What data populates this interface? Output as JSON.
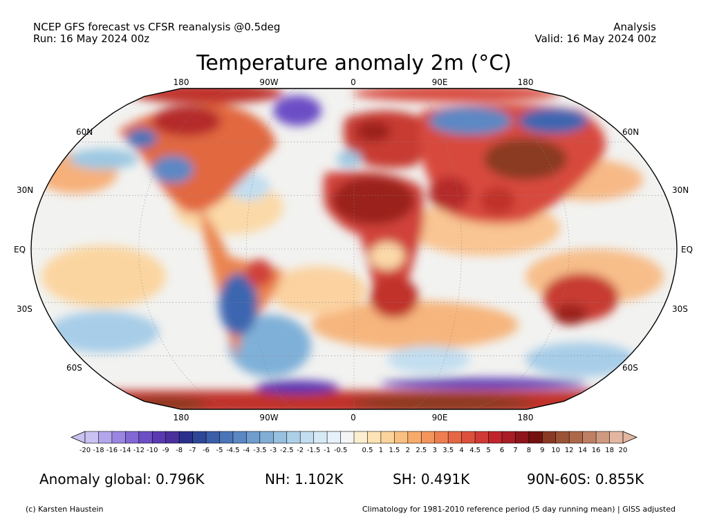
{
  "header": {
    "left_line1": "NCEP GFS forecast vs CFSR reanalysis @0.5deg",
    "left_line2": "Run: 16 May 2024 00z",
    "right_line1": "Analysis",
    "right_line2": "Valid: 16 May 2024 00z"
  },
  "title": "Temperature anomaly 2m (°C)",
  "map": {
    "projection": "Robinson",
    "lon_labels": [
      "180",
      "90W",
      "0",
      "90E",
      "180"
    ],
    "lat_labels": [
      "60N",
      "30N",
      "EQ",
      "30S",
      "60S"
    ],
    "colors": {
      "ocean_neutral": "#f2f2f0",
      "warm": "#f6b87a",
      "hot": "#c0312c",
      "extreme_hot": "#8a3b24",
      "cool": "#9cc8e2",
      "cold": "#3d66b0",
      "very_cold": "#5b3aa8"
    }
  },
  "colorbar": {
    "labels": [
      "-20",
      "-18",
      "-16",
      "-14",
      "-12",
      "-10",
      "-9",
      "-8",
      "-7",
      "-6",
      "-5",
      "-4.5",
      "-4",
      "-3.5",
      "-3",
      "-2.5",
      "-2",
      "-1.5",
      "-1",
      "-0.5",
      "0.5",
      "1",
      "1.5",
      "2",
      "2.5",
      "3",
      "3.5",
      "4",
      "4.5",
      "5",
      "6",
      "7",
      "8",
      "9",
      "10",
      "12",
      "14",
      "16",
      "18",
      "20"
    ],
    "colors": [
      "#c9c2f2",
      "#b3a6ec",
      "#9a86e0",
      "#8268d4",
      "#6c4ec6",
      "#5a39b2",
      "#49309c",
      "#2b2f8c",
      "#2d4796",
      "#3a5ea8",
      "#4b75b8",
      "#5b88c4",
      "#6e9dce",
      "#82aed6",
      "#98c0df",
      "#aed0e7",
      "#c2def0",
      "#d6eaf6",
      "#e6f2fa",
      "#f5f5f5",
      "#fbefcf",
      "#fde3b5",
      "#fcd39a",
      "#fac081",
      "#f7ab6b",
      "#f3955c",
      "#ee7e4f",
      "#e66745",
      "#dc503c",
      "#d03934",
      "#bf262c",
      "#a81d25",
      "#8e141c",
      "#741010",
      "#8a3a24",
      "#9c5236",
      "#ad684a",
      "#be7f62",
      "#d09a80",
      "#e2b6a0"
    ]
  },
  "stats": {
    "global": "Anomaly global: 0.796K",
    "nh": "NH: 1.102K",
    "sh": "SH: 0.491K",
    "arctic": "90N-60S: 0.855K"
  },
  "footer": {
    "left": "(c) Karsten Haustein",
    "right": "Climatology for 1981-2010 reference period (5 day running mean) | GISS adjusted"
  }
}
